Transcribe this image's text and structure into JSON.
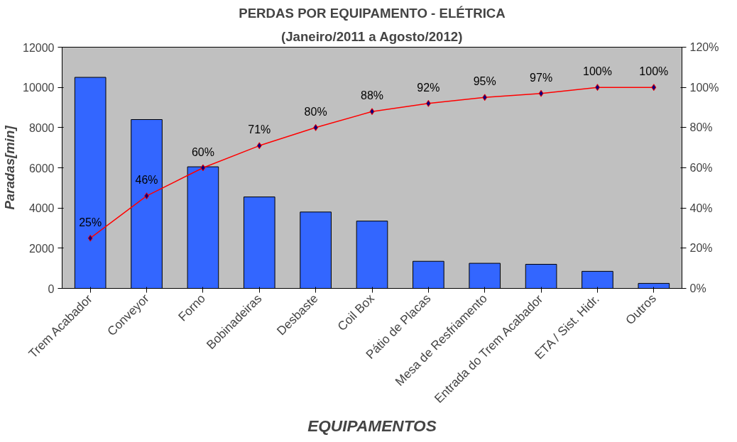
{
  "chart_data": {
    "type": "bar",
    "title": "PERDAS POR EQUIPAMENTO - ELÉTRICA",
    "subtitle": "(Janeiro/2011 a Agosto/2012)",
    "xlabel": "EQUIPAMENTOS",
    "ylabel": "Paradas[min]",
    "categories": [
      "Trem Acabador",
      "Conveyor",
      "Forno",
      "Bobinadeiras",
      "Desbaste",
      "Coil Box",
      "Pátio de Placas",
      "Mesa de Resfriamento",
      "Entrada do Trem Acabador",
      "ETA / Sist. Hidr.",
      "Outros"
    ],
    "series": [
      {
        "color": "#3366ff",
        "values": [
          10500,
          8400,
          6050,
          4550,
          3800,
          3350,
          1350,
          1250,
          1200,
          850,
          250
        ]
      },
      {
        "type": "line",
        "axis": "y2",
        "color": "#ff0000",
        "marker": "diamond",
        "line_style": "solid",
        "values": [
          25,
          46,
          60,
          71,
          80,
          88,
          92,
          95,
          97,
          100,
          100
        ],
        "value_labels": [
          "25%",
          "46%",
          "60%",
          "71%",
          "80%",
          "88%",
          "92%",
          "95%",
          "97%",
          "100%",
          "100%"
        ]
      }
    ],
    "ylim": [
      0,
      12000
    ],
    "yticks": [
      0,
      2000,
      4000,
      6000,
      8000,
      10000,
      12000
    ],
    "y2lim": [
      0,
      120
    ],
    "y2ticks": [
      {
        "value": 0,
        "label": "0%"
      },
      {
        "value": 20,
        "label": "20%"
      },
      {
        "value": 40,
        "label": "40%"
      },
      {
        "value": 60,
        "label": "60%"
      },
      {
        "value": 80,
        "label": "80%"
      },
      {
        "value": 100,
        "label": "100%"
      },
      {
        "value": 120,
        "label": "120%"
      }
    ],
    "grid": false
  }
}
